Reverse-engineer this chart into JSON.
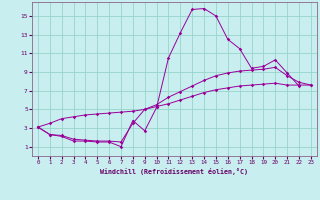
{
  "xlabel": "Windchill (Refroidissement éolien,°C)",
  "bg_color": "#c8eef0",
  "grid_color": "#96d4cc",
  "line_color": "#990099",
  "xlim": [
    -0.5,
    23.5
  ],
  "ylim": [
    0,
    16.5
  ],
  "xticks": [
    0,
    1,
    2,
    3,
    4,
    5,
    6,
    7,
    8,
    9,
    10,
    11,
    12,
    13,
    14,
    15,
    16,
    17,
    18,
    19,
    20,
    21,
    22,
    23
  ],
  "yticks": [
    1,
    3,
    5,
    7,
    9,
    11,
    13,
    15
  ],
  "series": [
    [
      3.1,
      2.3,
      2.1,
      1.6,
      1.6,
      1.5,
      1.5,
      1.0,
      3.8,
      2.7,
      5.2,
      10.5,
      13.2,
      15.7,
      15.8,
      15.0,
      12.5,
      11.5,
      9.4,
      9.6,
      10.3,
      8.9,
      7.5,
      null
    ],
    [
      3.1,
      2.3,
      2.2,
      1.8,
      1.7,
      1.6,
      1.6,
      1.5,
      3.5,
      5.0,
      5.5,
      6.3,
      6.9,
      7.5,
      8.1,
      8.6,
      8.9,
      9.1,
      9.2,
      9.3,
      9.5,
      8.6,
      7.9,
      7.6
    ],
    [
      3.1,
      3.5,
      4.0,
      4.2,
      4.4,
      4.5,
      4.6,
      4.7,
      4.8,
      5.0,
      5.3,
      5.6,
      6.0,
      6.4,
      6.8,
      7.1,
      7.3,
      7.5,
      7.6,
      7.7,
      7.8,
      7.6,
      7.6,
      7.6
    ]
  ]
}
